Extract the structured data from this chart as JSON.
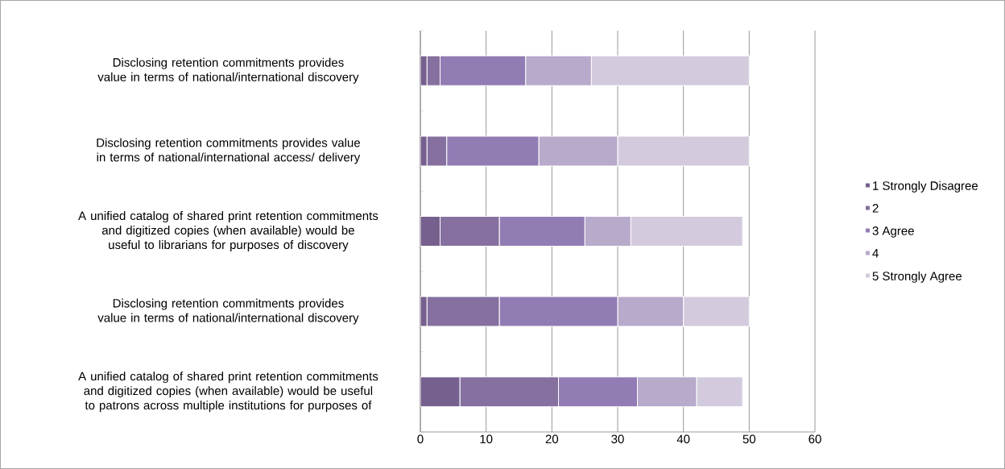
{
  "chart_data": {
    "type": "bar",
    "orientation": "horizontal",
    "stacked": true,
    "categories": [
      "Disclosing retention commitments provides value in terms of national/international discovery",
      "Disclosing retention commitments provides value in terms of national/international access/ delivery",
      "A unified catalog of shared print retention commitments and digitized copies (when available) would be useful to librarians for purposes of discovery",
      "Disclosing retention commitments provides value in terms of national/international discovery",
      "A unified catalog of shared print retention commitments and digitized copies (when available) would be useful to patrons across multiple institutions for purposes of"
    ],
    "series": [
      {
        "name": "1 Strongly Disagree",
        "color": "#76608e",
        "values": [
          1,
          1,
          3,
          1,
          6
        ]
      },
      {
        "name": "2",
        "color": "#8670a0",
        "values": [
          2,
          3,
          9,
          11,
          15
        ]
      },
      {
        "name": "3 Agree",
        "color": "#927cb4",
        "values": [
          13,
          14,
          13,
          18,
          12
        ]
      },
      {
        "name": "4",
        "color": "#b8aacb",
        "values": [
          10,
          12,
          7,
          10,
          9
        ]
      },
      {
        "name": "5 Strongly Agree",
        "color": "#d3cbdd",
        "values": [
          24,
          20,
          17,
          10,
          7
        ]
      }
    ],
    "xlim": [
      0,
      60
    ],
    "xticks": [
      0,
      10,
      20,
      30,
      40,
      50,
      60
    ],
    "grid": "x",
    "legend": "right"
  }
}
